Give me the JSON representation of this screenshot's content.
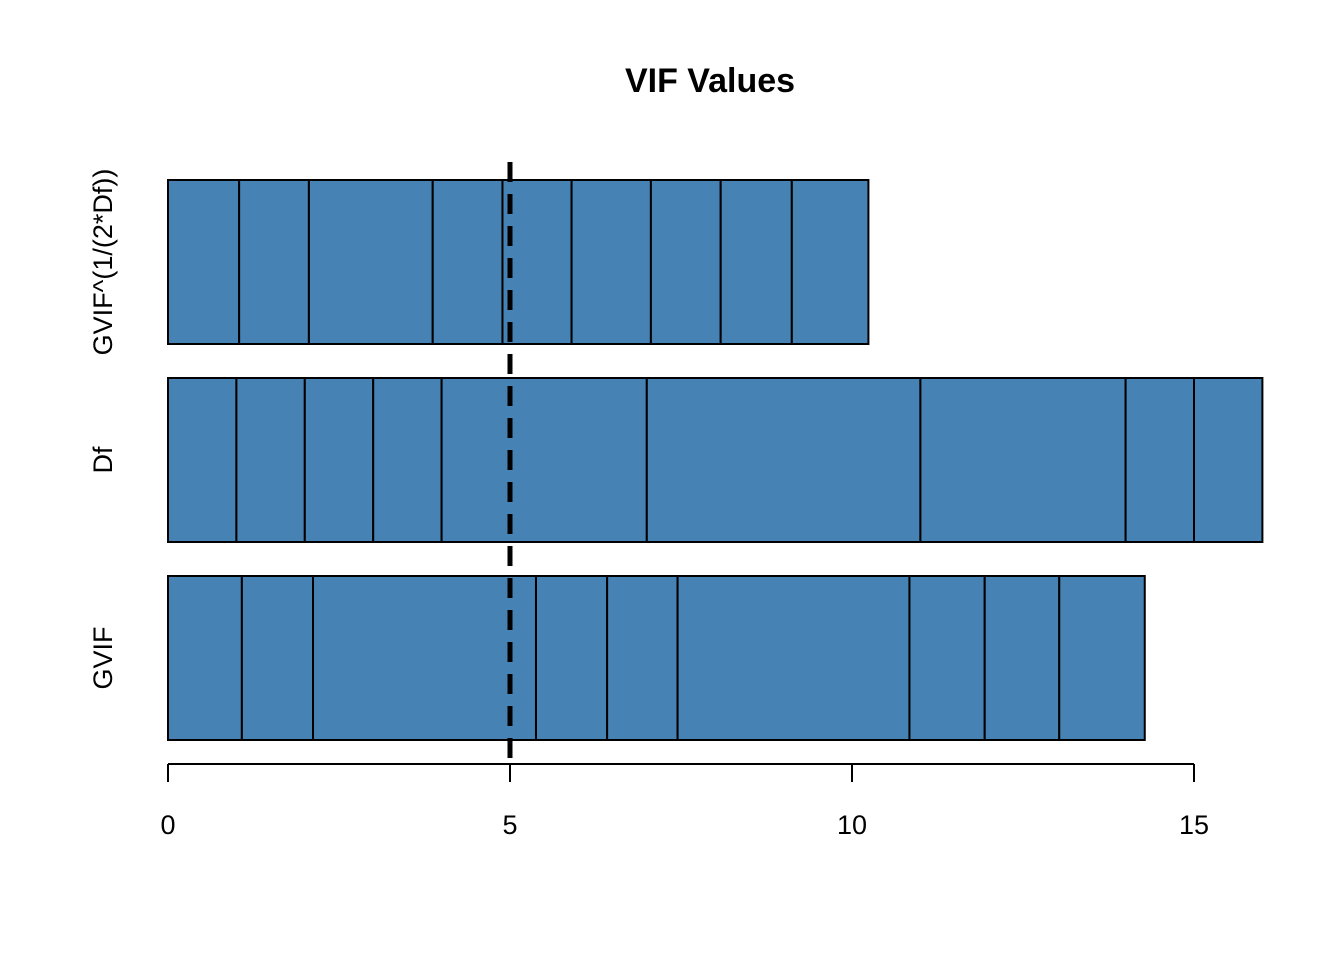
{
  "chart_data": {
    "type": "bar",
    "orientation": "horizontal",
    "stacked": true,
    "title": "VIF Values",
    "xlabel": "",
    "ylabel": "",
    "categories": [
      "GVIF",
      "Df",
      "GVIF^(1/(2*Df))"
    ],
    "segments": {
      "GVIF": [
        1.08,
        1.04,
        3.26,
        1.04,
        1.03,
        3.39,
        1.1,
        1.09,
        1.25
      ],
      "Df": [
        1,
        1,
        1,
        1,
        3,
        4,
        3,
        1,
        1
      ],
      "GVIF^(1/(2*Df))": [
        1.04,
        1.02,
        1.81,
        1.02,
        1.01,
        1.16,
        1.02,
        1.04,
        1.12
      ]
    },
    "totals": {
      "GVIF": 14.28,
      "Df": 16,
      "GVIF^(1/(2*Df))": 10.24
    },
    "xlim": [
      0,
      16
    ],
    "xticks": [
      "0",
      "5",
      "10",
      "15"
    ],
    "reference_line": {
      "x": 5,
      "style": "dashed"
    },
    "bar_color": "#4682B4",
    "border_color": "#000000"
  }
}
